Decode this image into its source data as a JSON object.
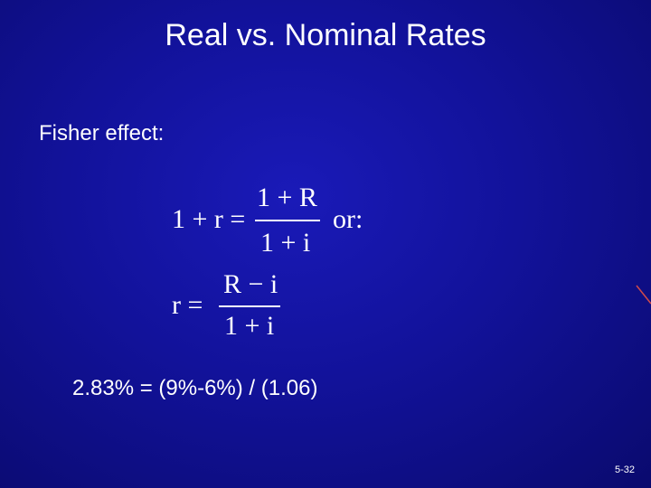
{
  "title": "Real vs. Nominal Rates",
  "subtitle": "Fisher effect:",
  "equation1": {
    "lhs": "1 + r =",
    "numerator": "1 + R",
    "denominator": "1 + i",
    "suffix": "or:"
  },
  "equation2": {
    "lhs": "r =",
    "numerator": "R − i",
    "denominator": "1 + i"
  },
  "example": "2.83% = (9%-6%) / (1.06)",
  "slide_number": "5-32"
}
